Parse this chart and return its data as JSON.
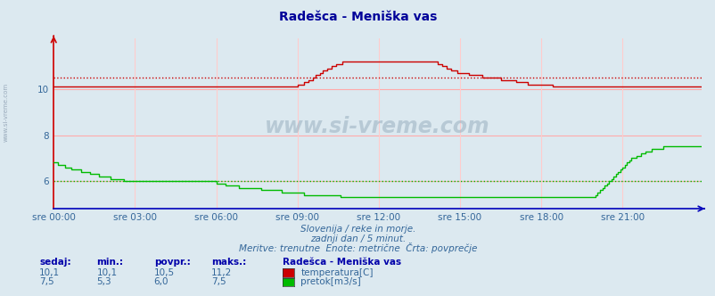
{
  "title": "Radešca - Meniška vas",
  "bg_color": "#dce9f0",
  "plot_bg_color": "#dce9f0",
  "grid_color_h": "#ffaaaa",
  "grid_color_v": "#ffcccc",
  "x_tick_labels": [
    "sre 00:00",
    "sre 03:00",
    "sre 06:00",
    "sre 09:00",
    "sre 12:00",
    "sre 15:00",
    "sre 18:00",
    "sre 21:00"
  ],
  "y_ticks": [
    6,
    8,
    10
  ],
  "ylim": [
    4.8,
    12.2
  ],
  "xlim": [
    0,
    287
  ],
  "subtitle1": "Slovenija / reke in morje.",
  "subtitle2": "zadnji dan / 5 minut.",
  "subtitle3": "Meritve: trenutne  Enote: metrične  Črta: povprečje",
  "footer_col_headers": [
    "sedaj:",
    "min.:",
    "povpr.:",
    "maks.:"
  ],
  "footer_row1_vals": [
    "10,1",
    "10,1",
    "10,5",
    "11,2"
  ],
  "footer_row2_vals": [
    "7,5",
    "5,3",
    "6,0",
    "7,5"
  ],
  "footer_station": "Radešca - Meniška vas",
  "footer_temp_label": "temperatura[C]",
  "footer_flow_label": "pretok[m3/s]",
  "temp_color": "#cc0000",
  "flow_color": "#00bb00",
  "watermark_text": "www.si-vreme.com",
  "left_label": "www.si-vreme.com",
  "avg_temp": 10.5,
  "avg_flow": 6.0,
  "n_points": 288,
  "temp_data": [
    10.1,
    10.1,
    10.1,
    10.1,
    10.1,
    10.1,
    10.1,
    10.1,
    10.1,
    10.1,
    10.1,
    10.1,
    10.1,
    10.1,
    10.1,
    10.1,
    10.1,
    10.1,
    10.1,
    10.1,
    10.1,
    10.1,
    10.1,
    10.1,
    10.1,
    10.1,
    10.1,
    10.1,
    10.1,
    10.1,
    10.1,
    10.1,
    10.1,
    10.1,
    10.1,
    10.1,
    10.1,
    10.1,
    10.1,
    10.1,
    10.1,
    10.1,
    10.1,
    10.1,
    10.1,
    10.1,
    10.1,
    10.1,
    10.1,
    10.1,
    10.1,
    10.1,
    10.1,
    10.1,
    10.1,
    10.1,
    10.1,
    10.1,
    10.1,
    10.1,
    10.1,
    10.1,
    10.1,
    10.1,
    10.1,
    10.1,
    10.1,
    10.1,
    10.1,
    10.1,
    10.1,
    10.1,
    10.1,
    10.1,
    10.1,
    10.1,
    10.1,
    10.1,
    10.1,
    10.1,
    10.1,
    10.1,
    10.1,
    10.1,
    10.1,
    10.1,
    10.1,
    10.1,
    10.1,
    10.1,
    10.1,
    10.1,
    10.1,
    10.1,
    10.1,
    10.1,
    10.1,
    10.1,
    10.1,
    10.1,
    10.1,
    10.1,
    10.1,
    10.1,
    10.1,
    10.1,
    10.1,
    10.1,
    10.2,
    10.2,
    10.2,
    10.3,
    10.3,
    10.4,
    10.4,
    10.5,
    10.6,
    10.6,
    10.7,
    10.8,
    10.8,
    10.9,
    10.9,
    11.0,
    11.0,
    11.1,
    11.1,
    11.1,
    11.2,
    11.2,
    11.2,
    11.2,
    11.2,
    11.2,
    11.2,
    11.2,
    11.2,
    11.2,
    11.2,
    11.2,
    11.2,
    11.2,
    11.2,
    11.2,
    11.2,
    11.2,
    11.2,
    11.2,
    11.2,
    11.2,
    11.2,
    11.2,
    11.2,
    11.2,
    11.2,
    11.2,
    11.2,
    11.2,
    11.2,
    11.2,
    11.2,
    11.2,
    11.2,
    11.2,
    11.2,
    11.2,
    11.2,
    11.2,
    11.2,
    11.2,
    11.1,
    11.1,
    11.0,
    11.0,
    10.9,
    10.9,
    10.8,
    10.8,
    10.8,
    10.7,
    10.7,
    10.7,
    10.7,
    10.7,
    10.6,
    10.6,
    10.6,
    10.6,
    10.6,
    10.6,
    10.5,
    10.5,
    10.5,
    10.5,
    10.5,
    10.5,
    10.5,
    10.5,
    10.4,
    10.4,
    10.4,
    10.4,
    10.4,
    10.4,
    10.4,
    10.3,
    10.3,
    10.3,
    10.3,
    10.3,
    10.2,
    10.2,
    10.2,
    10.2,
    10.2,
    10.2,
    10.2,
    10.2,
    10.2,
    10.2,
    10.2,
    10.1,
    10.1,
    10.1,
    10.1,
    10.1,
    10.1,
    10.1,
    10.1,
    10.1,
    10.1,
    10.1,
    10.1,
    10.1,
    10.1,
    10.1,
    10.1,
    10.1,
    10.1,
    10.1,
    10.1,
    10.1,
    10.1,
    10.1,
    10.1,
    10.1,
    10.1,
    10.1,
    10.1,
    10.1,
    10.1,
    10.1,
    10.1,
    10.1,
    10.1,
    10.1,
    10.1,
    10.1,
    10.1,
    10.1,
    10.1,
    10.1,
    10.1,
    10.1,
    10.1,
    10.1,
    10.1,
    10.1,
    10.1,
    10.1,
    10.1,
    10.1,
    10.1,
    10.1,
    10.1,
    10.1,
    10.1,
    10.1,
    10.1,
    10.1,
    10.1,
    10.1,
    10.1,
    10.1,
    10.1,
    10.1,
    10.1,
    10.1
  ],
  "flow_data": [
    6.8,
    6.8,
    6.7,
    6.7,
    6.7,
    6.6,
    6.6,
    6.6,
    6.5,
    6.5,
    6.5,
    6.5,
    6.4,
    6.4,
    6.4,
    6.4,
    6.3,
    6.3,
    6.3,
    6.3,
    6.2,
    6.2,
    6.2,
    6.2,
    6.2,
    6.1,
    6.1,
    6.1,
    6.1,
    6.1,
    6.1,
    6.0,
    6.0,
    6.0,
    6.0,
    6.0,
    6.0,
    6.0,
    6.0,
    6.0,
    6.0,
    6.0,
    6.0,
    6.0,
    6.0,
    6.0,
    6.0,
    6.0,
    6.0,
    6.0,
    6.0,
    6.0,
    6.0,
    6.0,
    6.0,
    6.0,
    6.0,
    6.0,
    6.0,
    6.0,
    6.0,
    6.0,
    6.0,
    6.0,
    6.0,
    6.0,
    6.0,
    6.0,
    6.0,
    6.0,
    6.0,
    6.0,
    5.9,
    5.9,
    5.9,
    5.9,
    5.8,
    5.8,
    5.8,
    5.8,
    5.8,
    5.8,
    5.7,
    5.7,
    5.7,
    5.7,
    5.7,
    5.7,
    5.7,
    5.7,
    5.7,
    5.7,
    5.6,
    5.6,
    5.6,
    5.6,
    5.6,
    5.6,
    5.6,
    5.6,
    5.6,
    5.5,
    5.5,
    5.5,
    5.5,
    5.5,
    5.5,
    5.5,
    5.5,
    5.5,
    5.5,
    5.4,
    5.4,
    5.4,
    5.4,
    5.4,
    5.4,
    5.4,
    5.4,
    5.4,
    5.4,
    5.4,
    5.4,
    5.4,
    5.4,
    5.4,
    5.4,
    5.3,
    5.3,
    5.3,
    5.3,
    5.3,
    5.3,
    5.3,
    5.3,
    5.3,
    5.3,
    5.3,
    5.3,
    5.3,
    5.3,
    5.3,
    5.3,
    5.3,
    5.3,
    5.3,
    5.3,
    5.3,
    5.3,
    5.3,
    5.3,
    5.3,
    5.3,
    5.3,
    5.3,
    5.3,
    5.3,
    5.3,
    5.3,
    5.3,
    5.3,
    5.3,
    5.3,
    5.3,
    5.3,
    5.3,
    5.3,
    5.3,
    5.3,
    5.3,
    5.3,
    5.3,
    5.3,
    5.3,
    5.3,
    5.3,
    5.3,
    5.3,
    5.3,
    5.3,
    5.3,
    5.3,
    5.3,
    5.3,
    5.3,
    5.3,
    5.3,
    5.3,
    5.3,
    5.3,
    5.3,
    5.3,
    5.3,
    5.3,
    5.3,
    5.3,
    5.3,
    5.3,
    5.3,
    5.3,
    5.3,
    5.3,
    5.3,
    5.3,
    5.3,
    5.3,
    5.3,
    5.3,
    5.3,
    5.3,
    5.3,
    5.3,
    5.3,
    5.3,
    5.3,
    5.3,
    5.3,
    5.3,
    5.3,
    5.3,
    5.3,
    5.3,
    5.3,
    5.3,
    5.3,
    5.3,
    5.3,
    5.3,
    5.3,
    5.3,
    5.3,
    5.3,
    5.3,
    5.3,
    5.3,
    5.3,
    5.3,
    5.3,
    5.3,
    5.3,
    5.4,
    5.5,
    5.6,
    5.7,
    5.8,
    5.9,
    6.0,
    6.1,
    6.2,
    6.3,
    6.4,
    6.5,
    6.6,
    6.7,
    6.8,
    6.9,
    7.0,
    7.0,
    7.1,
    7.1,
    7.2,
    7.2,
    7.3,
    7.3,
    7.3,
    7.4,
    7.4,
    7.4,
    7.4,
    7.4,
    7.5,
    7.5,
    7.5,
    7.5,
    7.5,
    7.5,
    7.5,
    7.5,
    7.5,
    7.5,
    7.5,
    7.5,
    7.5,
    7.5,
    7.5,
    7.5,
    7.5,
    7.5
  ]
}
